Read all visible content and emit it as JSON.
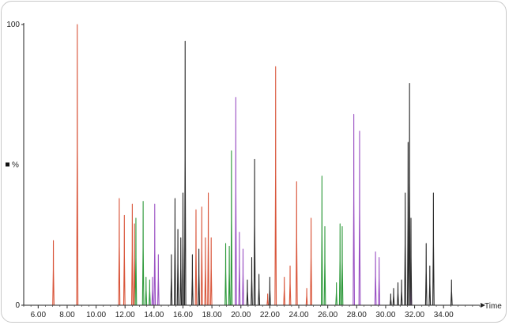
{
  "chart_data": {
    "type": "line",
    "title": "",
    "xlabel": "Time",
    "ylabel": "%",
    "xlim": [
      5.0,
      36.5
    ],
    "ylim": [
      0,
      100
    ],
    "grid": false,
    "x_ticks": [
      "6.00",
      "8.00",
      "10.00",
      "12.00",
      "14.00",
      "16.00",
      "18.00",
      "20.00",
      "22.00",
      "24.00",
      "26.00",
      "28.00",
      "30.00",
      "32.00",
      "34.00"
    ],
    "y_ticks": [
      "0",
      "100"
    ],
    "peak_width": 0.045,
    "series": [
      {
        "color": "#d9553a",
        "peaks": [
          {
            "x": 7.05,
            "y": 23
          },
          {
            "x": 8.7,
            "y": 100
          },
          {
            "x": 11.6,
            "y": 38
          },
          {
            "x": 11.95,
            "y": 32
          },
          {
            "x": 12.5,
            "y": 36
          },
          {
            "x": 12.65,
            "y": 29
          },
          {
            "x": 16.9,
            "y": 34
          },
          {
            "x": 17.3,
            "y": 35
          },
          {
            "x": 17.55,
            "y": 24
          },
          {
            "x": 17.75,
            "y": 40
          },
          {
            "x": 17.95,
            "y": 24
          },
          {
            "x": 21.85,
            "y": 4
          },
          {
            "x": 22.4,
            "y": 85
          },
          {
            "x": 23.0,
            "y": 10
          },
          {
            "x": 23.4,
            "y": 14
          },
          {
            "x": 23.85,
            "y": 44
          },
          {
            "x": 24.55,
            "y": 6
          },
          {
            "x": 24.85,
            "y": 31
          }
        ]
      },
      {
        "color": "#2f9a3c",
        "peaks": [
          {
            "x": 12.75,
            "y": 31
          },
          {
            "x": 13.25,
            "y": 37
          },
          {
            "x": 13.45,
            "y": 10
          },
          {
            "x": 13.7,
            "y": 9
          },
          {
            "x": 18.95,
            "y": 22
          },
          {
            "x": 19.2,
            "y": 21
          },
          {
            "x": 19.35,
            "y": 55
          },
          {
            "x": 25.6,
            "y": 46
          },
          {
            "x": 25.8,
            "y": 28
          },
          {
            "x": 26.6,
            "y": 8
          },
          {
            "x": 26.85,
            "y": 29
          },
          {
            "x": 27.0,
            "y": 28
          }
        ]
      },
      {
        "color": "#9b52c4",
        "peaks": [
          {
            "x": 13.9,
            "y": 10
          },
          {
            "x": 14.05,
            "y": 36
          },
          {
            "x": 14.3,
            "y": 18
          },
          {
            "x": 19.65,
            "y": 74
          },
          {
            "x": 19.9,
            "y": 26
          },
          {
            "x": 20.15,
            "y": 20
          },
          {
            "x": 27.8,
            "y": 68
          },
          {
            "x": 28.2,
            "y": 62
          },
          {
            "x": 29.3,
            "y": 19
          },
          {
            "x": 29.55,
            "y": 17
          },
          {
            "x": 31.75,
            "y": 8
          }
        ]
      },
      {
        "color": "#2a2a2a",
        "peaks": [
          {
            "x": 15.2,
            "y": 18
          },
          {
            "x": 15.45,
            "y": 38
          },
          {
            "x": 15.65,
            "y": 27
          },
          {
            "x": 15.85,
            "y": 24
          },
          {
            "x": 16.0,
            "y": 40
          },
          {
            "x": 16.15,
            "y": 94
          },
          {
            "x": 16.65,
            "y": 18
          },
          {
            "x": 17.1,
            "y": 20
          },
          {
            "x": 20.45,
            "y": 9
          },
          {
            "x": 20.75,
            "y": 17
          },
          {
            "x": 20.95,
            "y": 52
          },
          {
            "x": 21.25,
            "y": 11
          },
          {
            "x": 22.0,
            "y": 10
          },
          {
            "x": 30.35,
            "y": 4
          },
          {
            "x": 30.55,
            "y": 6
          },
          {
            "x": 30.85,
            "y": 8
          },
          {
            "x": 31.1,
            "y": 9
          },
          {
            "x": 31.35,
            "y": 40
          },
          {
            "x": 31.55,
            "y": 58
          },
          {
            "x": 31.65,
            "y": 79
          },
          {
            "x": 31.75,
            "y": 31
          },
          {
            "x": 32.8,
            "y": 22
          },
          {
            "x": 33.05,
            "y": 14
          },
          {
            "x": 33.3,
            "y": 40
          },
          {
            "x": 34.55,
            "y": 9
          }
        ]
      }
    ]
  }
}
